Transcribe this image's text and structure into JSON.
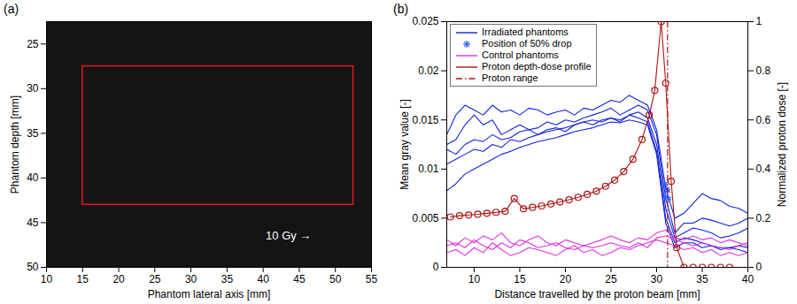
{
  "chart_data": [
    {
      "type": "image",
      "title": "(a)",
      "x_label": "Phantom lateral axis [mm]",
      "y_label": "Phantom depth [mm]",
      "xlim": [
        10,
        55
      ],
      "xticks": [
        10,
        15,
        20,
        25,
        30,
        35,
        40,
        45,
        50,
        55
      ],
      "ylim": [
        22.5,
        50
      ],
      "yticks": [
        25,
        30,
        35,
        40,
        45,
        50
      ],
      "regions": [
        {
          "x": [
            15,
            52.5
          ],
          "y": [
            27.5,
            43
          ],
          "color": "#e01818"
        }
      ],
      "annotations": [
        {
          "text": "10 Gy →",
          "x": 43.5,
          "y": 46.5
        }
      ]
    },
    {
      "type": "line",
      "title": "(b)",
      "x_label": "Distance travelled by the proton beam [mm]",
      "y_label": "Mean gray value [-]",
      "y2_label": "Normalized proton dose [-]",
      "xlim": [
        7,
        40
      ],
      "xticks": [
        10,
        15,
        20,
        25,
        30,
        35,
        40
      ],
      "ylim": [
        0,
        0.025
      ],
      "yticks": [
        0,
        0.005,
        0.01,
        0.015,
        0.02,
        0.025
      ],
      "y2lim": [
        0,
        1
      ],
      "y2ticks": [
        0,
        0.2,
        0.4,
        0.6,
        0.8,
        1
      ],
      "legend": "top-left",
      "series": [
        {
          "name": "Irradiated phantoms",
          "type": "line",
          "color": "#1020e0",
          "x": [
            7,
            8,
            9,
            10,
            11,
            12,
            13,
            14,
            15,
            16,
            17,
            18,
            19,
            20,
            21,
            22,
            23,
            24,
            25,
            26,
            27,
            28,
            29,
            30,
            31,
            32,
            33,
            34,
            35,
            36,
            37,
            38,
            39,
            40
          ],
          "lines": [
            [
              0.0135,
              0.0155,
              0.0165,
              0.016,
              0.0155,
              0.0165,
              0.0158,
              0.016,
              0.0155,
              0.0162,
              0.016,
              0.0155,
              0.0158,
              0.016,
              0.0155,
              0.0162,
              0.016,
              0.0165,
              0.017,
              0.0168,
              0.0175,
              0.017,
              0.0165,
              0.014,
              0.008,
              0.005,
              0.0055,
              0.0065,
              0.0075,
              0.007,
              0.0068,
              0.0062,
              0.006,
              0.0055
            ],
            [
              0.0125,
              0.013,
              0.0145,
              0.0155,
              0.0145,
              0.015,
              0.0135,
              0.014,
              0.0145,
              0.014,
              0.0142,
              0.0148,
              0.0145,
              0.015,
              0.0148,
              0.0152,
              0.0155,
              0.0158,
              0.0162,
              0.0155,
              0.016,
              0.0165,
              0.016,
              0.0135,
              0.007,
              0.0035,
              0.0045,
              0.0045,
              0.005,
              0.0048,
              0.0045,
              0.0042,
              0.0045,
              0.005
            ],
            [
              0.012,
              0.0115,
              0.0125,
              0.013,
              0.0128,
              0.0135,
              0.013,
              0.0132,
              0.0138,
              0.014,
              0.0135,
              0.014,
              0.0142,
              0.0138,
              0.0145,
              0.0148,
              0.0145,
              0.015,
              0.0152,
              0.0148,
              0.0155,
              0.0158,
              0.0152,
              0.0125,
              0.006,
              0.003,
              0.0035,
              0.004,
              0.0038,
              0.0035,
              0.003,
              0.0032,
              0.0035,
              0.004
            ],
            [
              0.0105,
              0.011,
              0.0115,
              0.012,
              0.0118,
              0.0125,
              0.0122,
              0.013,
              0.0128,
              0.0132,
              0.0135,
              0.0138,
              0.014,
              0.0142,
              0.0145,
              0.0148,
              0.015,
              0.0148,
              0.0152,
              0.015,
              0.0155,
              0.0152,
              0.0148,
              0.0118,
              0.005,
              0.0025,
              0.003,
              0.0028,
              0.0025,
              0.0022,
              0.002,
              0.002,
              0.0022,
              0.002
            ],
            [
              0.0078,
              0.0085,
              0.0095,
              0.01,
              0.0105,
              0.011,
              0.0115,
              0.0118,
              0.0122,
              0.0125,
              0.0128,
              0.013,
              0.0132,
              0.0135,
              0.0138,
              0.014,
              0.0142,
              0.0145,
              0.0148,
              0.0147,
              0.015,
              0.0148,
              0.0145,
              0.0115,
              0.0045,
              0.002,
              0.0025,
              0.0025,
              0.002,
              0.0022,
              0.0018,
              0.002,
              0.0018,
              0.0015
            ]
          ]
        },
        {
          "name": "Position of 50% drop",
          "type": "scatter",
          "marker": "asterisk",
          "color": "#2a5cf5",
          "x": [
            30.9,
            31.0,
            31.1,
            31.2,
            31.3
          ],
          "values": [
            0.0085,
            0.0072,
            0.008,
            0.0078,
            0.007
          ]
        },
        {
          "name": "Control phantoms",
          "type": "line",
          "color": "#e030e0",
          "x": [
            7,
            8,
            9,
            10,
            11,
            12,
            13,
            14,
            15,
            16,
            17,
            18,
            19,
            20,
            21,
            22,
            23,
            24,
            25,
            26,
            27,
            28,
            29,
            30,
            31,
            32,
            33,
            34,
            35,
            36,
            37,
            38,
            39,
            40
          ],
          "lines": [
            [
              0.0015,
              0.0018,
              0.0012,
              0.002,
              0.0015,
              0.0025,
              0.0018,
              0.0012,
              0.0015,
              0.002,
              0.0018,
              0.0015,
              0.0012,
              0.0018,
              0.0022,
              0.0015,
              0.0018,
              0.0012,
              0.0015,
              0.002,
              0.0018,
              0.0022,
              0.0025,
              0.0028,
              0.0025,
              0.0022,
              0.0018,
              0.002,
              0.0015,
              0.0018,
              0.0012,
              0.0015,
              0.0012,
              0.0015
            ],
            [
              0.0028,
              0.0022,
              0.003,
              0.0025,
              0.0032,
              0.0028,
              0.0035,
              0.0025,
              0.0022,
              0.0028,
              0.0032,
              0.0025,
              0.0022,
              0.0028,
              0.0025,
              0.0022,
              0.0025,
              0.0028,
              0.0032,
              0.0028,
              0.0025,
              0.003,
              0.0028,
              0.0035,
              0.0038,
              0.003,
              0.0028,
              0.0032,
              0.0028,
              0.003,
              0.0025,
              0.0028,
              0.0025,
              0.0022
            ],
            [
              0.0022,
              0.0025,
              0.002,
              0.0028,
              0.0022,
              0.0018,
              0.0025,
              0.002,
              0.0028,
              0.0025,
              0.002,
              0.0022,
              0.0025,
              0.002,
              0.0018,
              0.0022,
              0.002,
              0.0022,
              0.0025,
              0.0022,
              0.002,
              0.0025,
              0.002,
              0.003,
              0.0032,
              0.0028,
              0.0025,
              0.0022,
              0.0025,
              0.0022,
              0.002,
              0.0018,
              0.0022,
              0.0025
            ]
          ]
        },
        {
          "name": "Proton depth-dose profile",
          "type": "line",
          "marker": "circle",
          "axis": "y2",
          "color": "#b01212",
          "x": [
            7.4,
            8.4,
            9.4,
            10.4,
            11.4,
            12.4,
            13.4,
            14.4,
            15.4,
            16.4,
            17.4,
            18.4,
            19.4,
            20.4,
            21.4,
            22.4,
            23.4,
            24.4,
            25.4,
            26.4,
            27.4,
            28.4,
            29.2,
            29.8,
            30.5,
            31.0,
            31.6,
            32.2,
            33,
            34,
            35,
            36,
            37,
            38
          ],
          "values": [
            0.205,
            0.21,
            0.213,
            0.216,
            0.22,
            0.224,
            0.228,
            0.28,
            0.238,
            0.244,
            0.25,
            0.258,
            0.266,
            0.275,
            0.285,
            0.297,
            0.31,
            0.33,
            0.355,
            0.39,
            0.44,
            0.52,
            0.62,
            0.72,
            1,
            0.75,
            0.35,
            0.08,
            0,
            0,
            0,
            0,
            0,
            0
          ]
        },
        {
          "name": "Proton range",
          "type": "vline",
          "line_style": "dashdot",
          "color": "#b01212",
          "x": 31.2
        }
      ]
    }
  ]
}
